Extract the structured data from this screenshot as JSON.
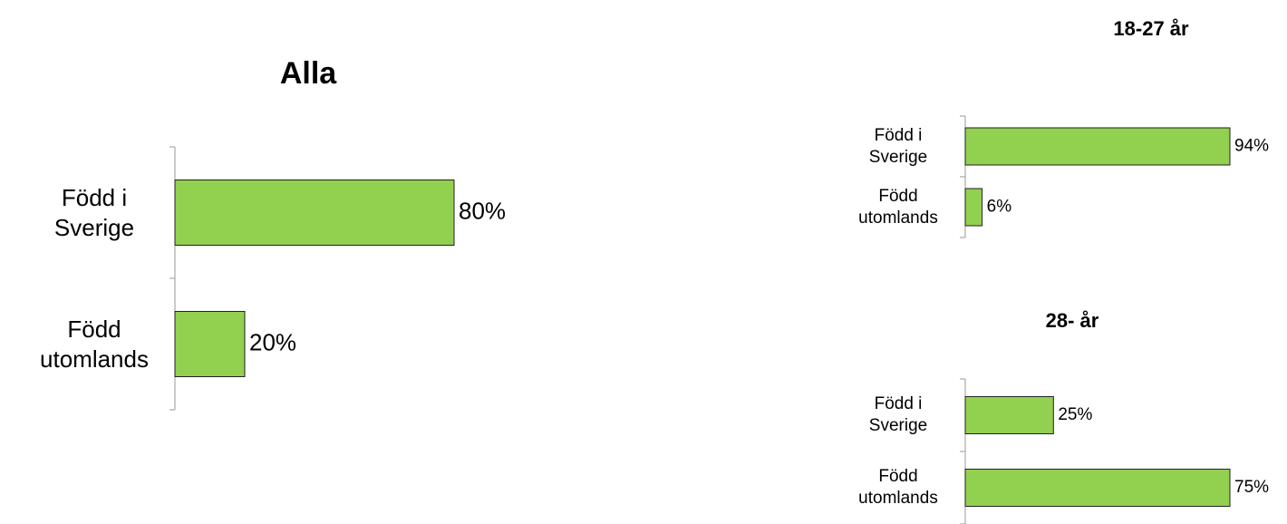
{
  "chart_data": [
    {
      "type": "bar",
      "title": "Alla",
      "categories": [
        "Född i Sverige",
        "Född utomlands"
      ],
      "values": [
        80,
        20
      ],
      "value_labels": [
        "80%",
        "20%"
      ],
      "color": "#92d050"
    },
    {
      "type": "bar",
      "title": "18-27 år",
      "categories": [
        "Född i Sverige",
        "Född utomlands"
      ],
      "values": [
        94,
        6
      ],
      "value_labels": [
        "94%",
        "6%"
      ],
      "color": "#92d050"
    },
    {
      "type": "bar",
      "title": "28- år",
      "categories": [
        "Född i Sverige",
        "Född utomlands"
      ],
      "values": [
        25,
        75
      ],
      "value_labels": [
        "25%",
        "75%"
      ],
      "color": "#92d050"
    }
  ]
}
